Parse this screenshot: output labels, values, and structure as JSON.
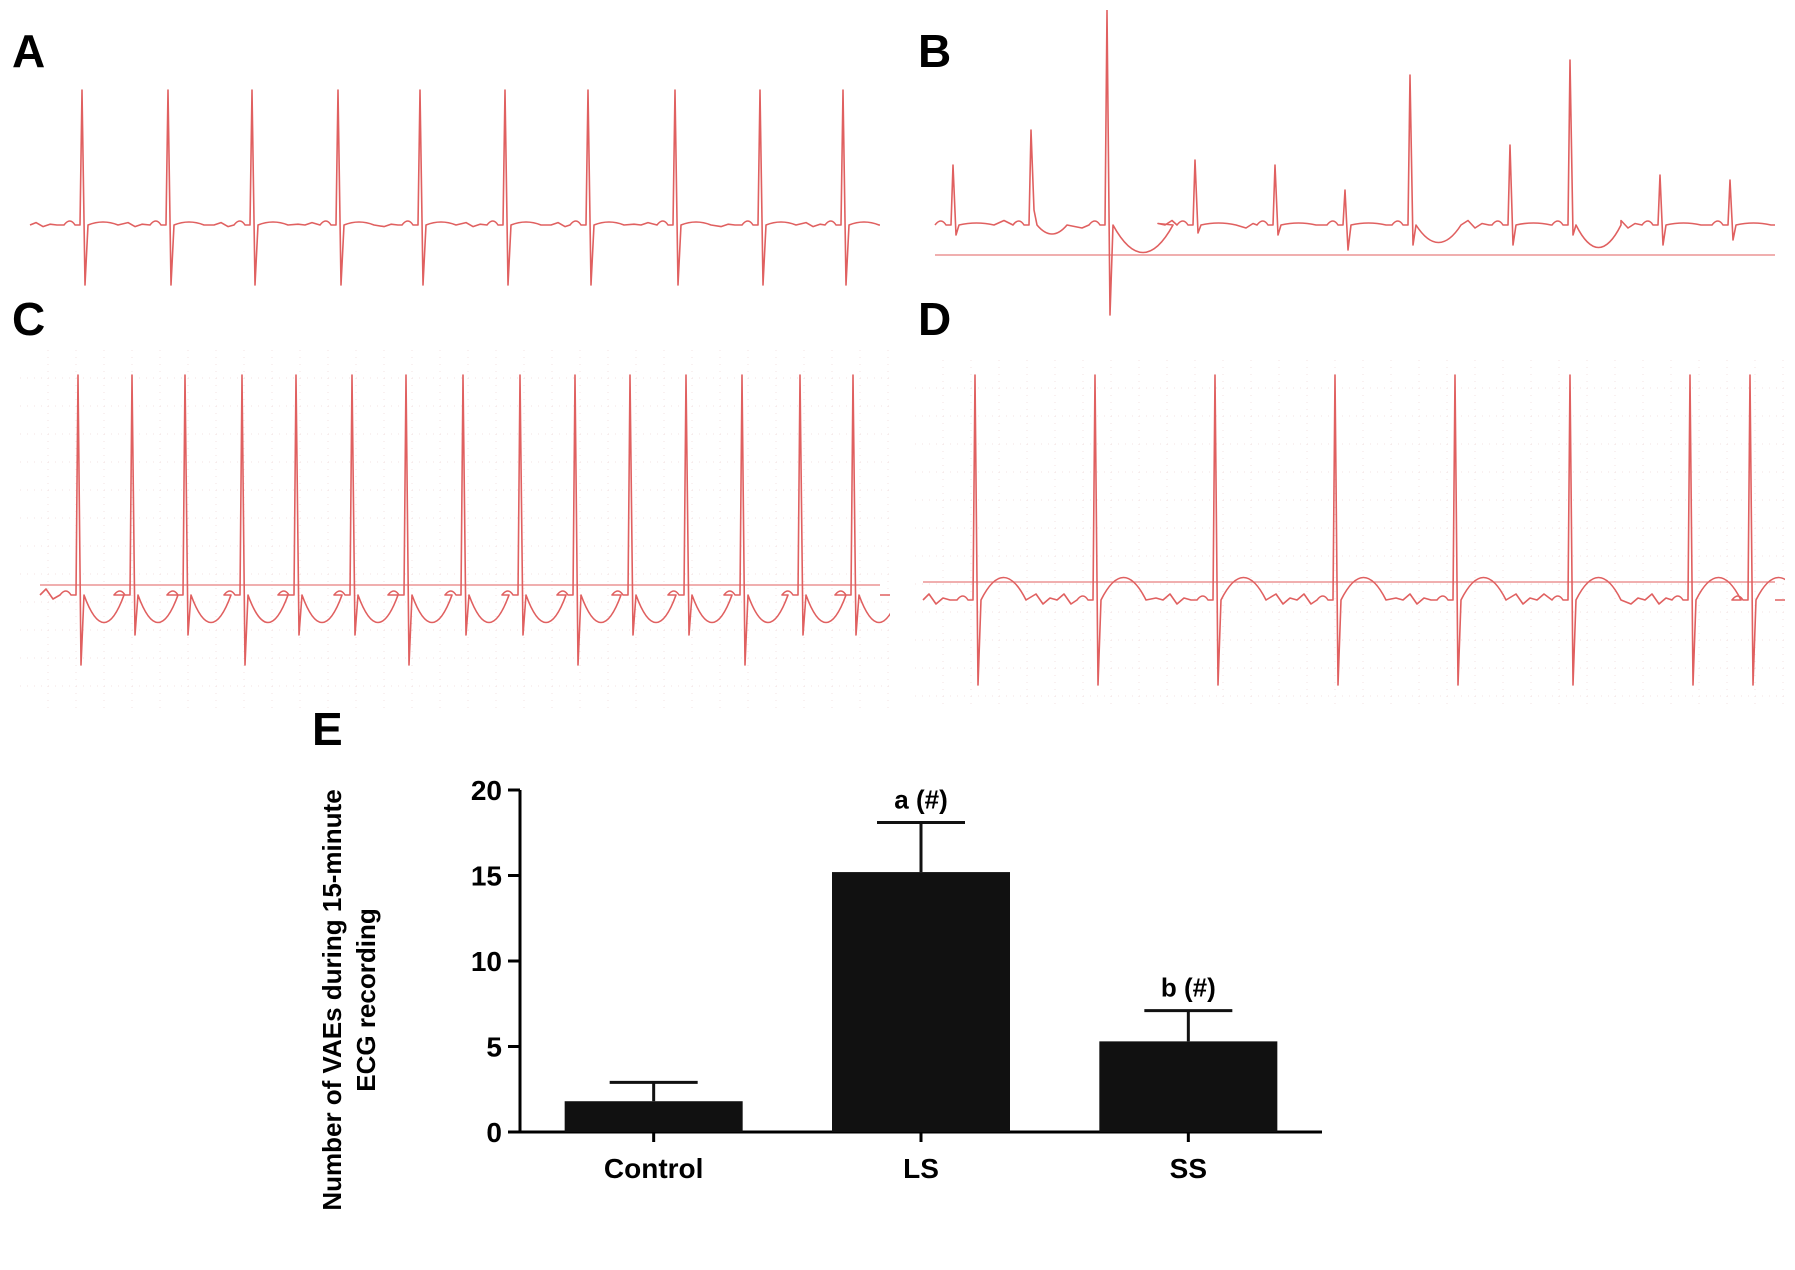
{
  "panels": {
    "A": "A",
    "B": "B",
    "C": "C",
    "D": "D",
    "E": "E"
  },
  "ecg_color": "#e06060",
  "chart_data": {
    "type": "bar",
    "categories": [
      "Control",
      "LS",
      "SS"
    ],
    "values": [
      1.8,
      15.2,
      5.3
    ],
    "errors": [
      1.1,
      2.9,
      1.8
    ],
    "annotations": [
      "",
      "a (#)",
      "b (#)"
    ],
    "ylabel": "Number of VAEs during 15-minute\nECG recording",
    "xlabel": "",
    "ylim": [
      0,
      20
    ],
    "yticks": [
      0,
      5,
      10,
      15,
      20
    ],
    "bar_color": "#111111",
    "grid": false
  }
}
